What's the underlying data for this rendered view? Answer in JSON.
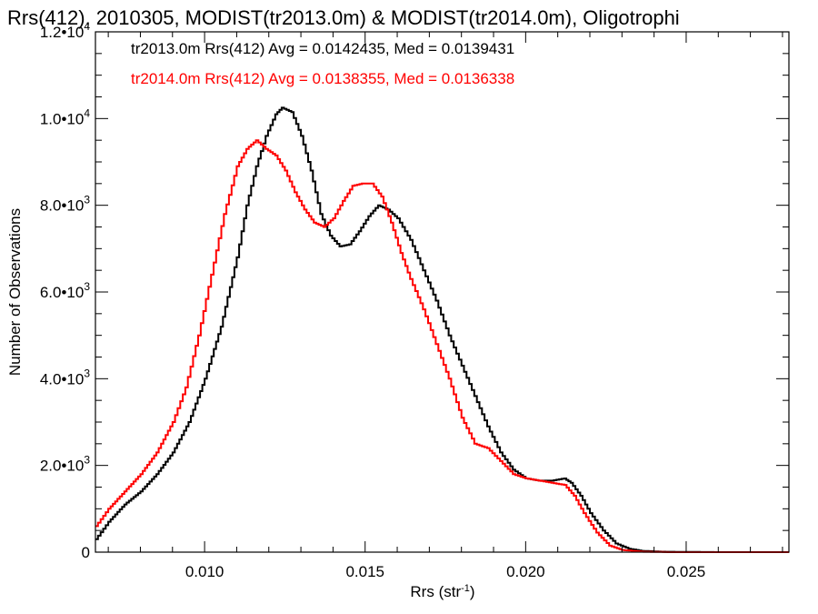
{
  "chart_data": {
    "type": "line",
    "title": "Rrs(412), 2010305, MODIST(tr2013.0m) & MODIST(tr2014.0m), Oligotrophi",
    "xlabel_main": "Rrs (str",
    "xlabel_sup": "-1",
    "xlabel_end": ")",
    "ylabel": "Number of Observations",
    "xlim": [
      0.0066,
      0.0282
    ],
    "ylim": [
      0,
      12000
    ],
    "x_ticks": [
      {
        "value": 0.01,
        "label": "0.010"
      },
      {
        "value": 0.015,
        "label": "0.015"
      },
      {
        "value": 0.02,
        "label": "0.020"
      },
      {
        "value": 0.025,
        "label": "0.025"
      }
    ],
    "y_ticks": [
      {
        "value": 0,
        "mant": "0",
        "exp": ""
      },
      {
        "value": 2000,
        "mant": "2.0•10",
        "exp": "3"
      },
      {
        "value": 4000,
        "mant": "4.0•10",
        "exp": "3"
      },
      {
        "value": 6000,
        "mant": "6.0•10",
        "exp": "3"
      },
      {
        "value": 8000,
        "mant": "8.0•10",
        "exp": "3"
      },
      {
        "value": 10000,
        "mant": "1.0•10",
        "exp": "4"
      },
      {
        "value": 12000,
        "mant": "1.2•10",
        "exp": "4"
      }
    ],
    "legend": [
      {
        "text": "tr2013.0m Rrs(412) Avg = 0.0142435, Med = 0.0139431",
        "color": "#000000"
      },
      {
        "text": "tr2014.0m Rrs(412) Avg = 0.0138355, Med = 0.0136338",
        "color": "#ff0000"
      }
    ],
    "series": [
      {
        "color": "#000000",
        "points": [
          [
            0.0066,
            300
          ],
          [
            0.007,
            700
          ],
          [
            0.0075,
            1100
          ],
          [
            0.008,
            1400
          ],
          [
            0.0085,
            1800
          ],
          [
            0.009,
            2300
          ],
          [
            0.0095,
            3000
          ],
          [
            0.01,
            4000
          ],
          [
            0.0105,
            5200
          ],
          [
            0.011,
            6800
          ],
          [
            0.0113,
            8000
          ],
          [
            0.0116,
            8900
          ],
          [
            0.0119,
            9600
          ],
          [
            0.0122,
            10100
          ],
          [
            0.0124,
            10250
          ],
          [
            0.0127,
            10150
          ],
          [
            0.013,
            9600
          ],
          [
            0.0133,
            8800
          ],
          [
            0.0136,
            7800
          ],
          [
            0.0139,
            7300
          ],
          [
            0.0142,
            7050
          ],
          [
            0.0145,
            7100
          ],
          [
            0.0148,
            7400
          ],
          [
            0.0151,
            7750
          ],
          [
            0.0154,
            8000
          ],
          [
            0.0157,
            7900
          ],
          [
            0.016,
            7700
          ],
          [
            0.0164,
            7200
          ],
          [
            0.0168,
            6500
          ],
          [
            0.0172,
            5800
          ],
          [
            0.0176,
            5000
          ],
          [
            0.018,
            4300
          ],
          [
            0.0184,
            3600
          ],
          [
            0.0188,
            2900
          ],
          [
            0.0192,
            2300
          ],
          [
            0.0196,
            1900
          ],
          [
            0.02,
            1700
          ],
          [
            0.0204,
            1650
          ],
          [
            0.0208,
            1650
          ],
          [
            0.0212,
            1700
          ],
          [
            0.0214,
            1600
          ],
          [
            0.0217,
            1300
          ],
          [
            0.022,
            900
          ],
          [
            0.0224,
            500
          ],
          [
            0.0228,
            200
          ],
          [
            0.0232,
            80
          ],
          [
            0.0236,
            30
          ],
          [
            0.0242,
            10
          ],
          [
            0.025,
            5
          ],
          [
            0.026,
            0
          ],
          [
            0.0282,
            0
          ]
        ]
      },
      {
        "color": "#ff0000",
        "points": [
          [
            0.0066,
            600
          ],
          [
            0.007,
            1000
          ],
          [
            0.0075,
            1400
          ],
          [
            0.008,
            1800
          ],
          [
            0.0085,
            2300
          ],
          [
            0.009,
            3000
          ],
          [
            0.0094,
            3800
          ],
          [
            0.0098,
            5000
          ],
          [
            0.0102,
            6400
          ],
          [
            0.0106,
            7800
          ],
          [
            0.011,
            8900
          ],
          [
            0.0113,
            9300
          ],
          [
            0.0116,
            9500
          ],
          [
            0.0119,
            9300
          ],
          [
            0.0122,
            9150
          ],
          [
            0.0125,
            8800
          ],
          [
            0.0128,
            8300
          ],
          [
            0.0131,
            7900
          ],
          [
            0.0134,
            7600
          ],
          [
            0.0137,
            7500
          ],
          [
            0.014,
            7700
          ],
          [
            0.0143,
            8100
          ],
          [
            0.0146,
            8450
          ],
          [
            0.0149,
            8500
          ],
          [
            0.0152,
            8500
          ],
          [
            0.0155,
            8200
          ],
          [
            0.0158,
            7600
          ],
          [
            0.0161,
            6900
          ],
          [
            0.0164,
            6300
          ],
          [
            0.0168,
            5600
          ],
          [
            0.0172,
            4800
          ],
          [
            0.0176,
            4000
          ],
          [
            0.018,
            3100
          ],
          [
            0.0184,
            2500
          ],
          [
            0.0188,
            2400
          ],
          [
            0.0192,
            2100
          ],
          [
            0.0196,
            1800
          ],
          [
            0.02,
            1700
          ],
          [
            0.0204,
            1650
          ],
          [
            0.0208,
            1600
          ],
          [
            0.0212,
            1550
          ],
          [
            0.0215,
            1300
          ],
          [
            0.0218,
            900
          ],
          [
            0.0222,
            450
          ],
          [
            0.0226,
            150
          ],
          [
            0.023,
            50
          ],
          [
            0.0236,
            10
          ],
          [
            0.0245,
            0
          ],
          [
            0.0282,
            0
          ]
        ]
      }
    ]
  }
}
